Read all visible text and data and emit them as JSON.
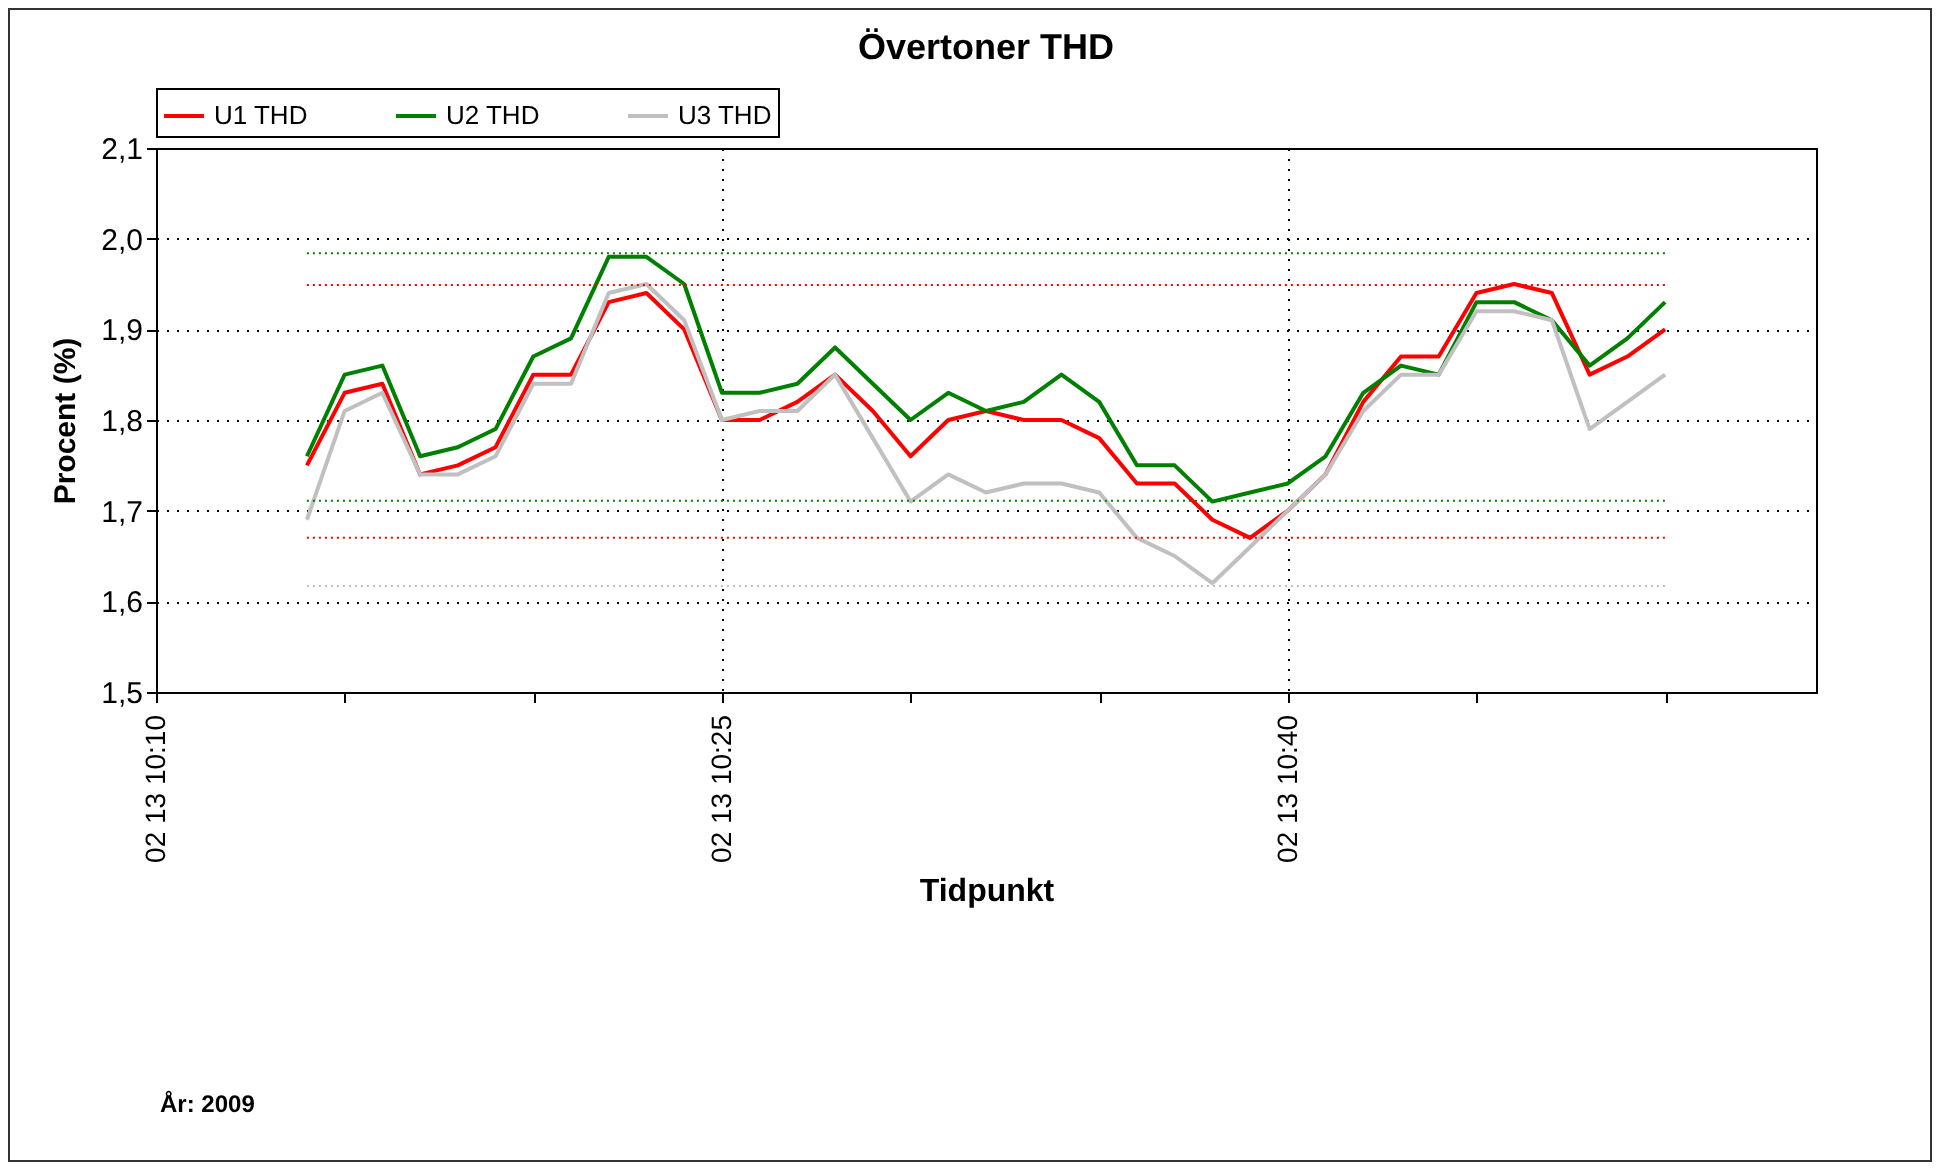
{
  "chart_data": {
    "type": "line",
    "title": "Övertoner THD",
    "xlabel": "Tidpunkt",
    "ylabel": "Procent (%)",
    "annotations": [
      "År: 2009"
    ],
    "x": [
      "2009-02-13T10:14",
      "2009-02-13T10:15",
      "2009-02-13T10:16",
      "2009-02-13T10:17",
      "2009-02-13T10:18",
      "2009-02-13T10:19",
      "2009-02-13T10:20",
      "2009-02-13T10:21",
      "2009-02-13T10:22",
      "2009-02-13T10:23",
      "2009-02-13T10:24",
      "2009-02-13T10:25",
      "2009-02-13T10:26",
      "2009-02-13T10:27",
      "2009-02-13T10:28",
      "2009-02-13T10:29",
      "2009-02-13T10:30",
      "2009-02-13T10:31",
      "2009-02-13T10:32",
      "2009-02-13T10:33",
      "2009-02-13T10:34",
      "2009-02-13T10:35",
      "2009-02-13T10:36",
      "2009-02-13T10:37",
      "2009-02-13T10:38",
      "2009-02-13T10:39",
      "2009-02-13T10:40",
      "2009-02-13T10:41",
      "2009-02-13T10:42",
      "2009-02-13T10:43",
      "2009-02-13T10:44",
      "2009-02-13T10:45",
      "2009-02-13T10:46",
      "2009-02-13T10:47",
      "2009-02-13T10:48",
      "2009-02-13T10:49",
      "2009-02-13T10:50"
    ],
    "series": [
      {
        "name": "U1 THD",
        "color": "#ff0000",
        "values": [
          1.75,
          1.83,
          1.84,
          1.74,
          1.75,
          1.77,
          1.85,
          1.85,
          1.93,
          1.94,
          1.9,
          1.8,
          1.8,
          1.82,
          1.85,
          1.81,
          1.76,
          1.8,
          1.81,
          1.8,
          1.8,
          1.78,
          1.73,
          1.73,
          1.69,
          1.67,
          1.7,
          1.74,
          1.82,
          1.87,
          1.87,
          1.94,
          1.95,
          1.94,
          1.85,
          1.87,
          1.9
        ]
      },
      {
        "name": "U2 THD",
        "color": "#008000",
        "values": [
          1.76,
          1.85,
          1.86,
          1.76,
          1.77,
          1.79,
          1.87,
          1.89,
          1.98,
          1.98,
          1.95,
          1.83,
          1.83,
          1.84,
          1.88,
          1.84,
          1.8,
          1.83,
          1.81,
          1.82,
          1.85,
          1.82,
          1.75,
          1.75,
          1.71,
          1.72,
          1.73,
          1.76,
          1.83,
          1.86,
          1.85,
          1.93,
          1.93,
          1.91,
          1.86,
          1.89,
          1.93
        ]
      },
      {
        "name": "U3 THD",
        "color": "#c0c0c0",
        "values": [
          1.69,
          1.81,
          1.83,
          1.74,
          1.74,
          1.76,
          1.84,
          1.84,
          1.94,
          1.95,
          1.91,
          1.8,
          1.81,
          1.81,
          1.85,
          1.78,
          1.71,
          1.74,
          1.72,
          1.73,
          1.73,
          1.72,
          1.67,
          1.65,
          1.62,
          1.66,
          1.7,
          1.74,
          1.81,
          1.85,
          1.85,
          1.92,
          1.92,
          1.91,
          1.79,
          1.82,
          1.85
        ]
      }
    ],
    "ref_lines": [
      {
        "axis": "y",
        "value": 1.984,
        "color": "#008000",
        "line_style": "dotted"
      },
      {
        "axis": "y",
        "value": 1.711,
        "color": "#008000",
        "line_style": "dotted"
      },
      {
        "axis": "y",
        "value": 1.949,
        "color": "#ff0000",
        "line_style": "dotted"
      },
      {
        "axis": "y",
        "value": 1.67,
        "color": "#ff0000",
        "line_style": "dotted"
      },
      {
        "axis": "y",
        "value": 1.617,
        "color": "#c0c0c0",
        "line_style": "dotted"
      }
    ],
    "xlim": [
      "2009-02-13T10:10",
      "2009-02-13T10:54"
    ],
    "xticks": [
      {
        "value": "2009-02-13T10:10",
        "label": "02 13 10:10"
      },
      {
        "value": "2009-02-13T10:15",
        "label": null
      },
      {
        "value": "2009-02-13T10:20",
        "label": null
      },
      {
        "value": "2009-02-13T10:25",
        "label": "02 13 10:25"
      },
      {
        "value": "2009-02-13T10:30",
        "label": null
      },
      {
        "value": "2009-02-13T10:35",
        "label": null
      },
      {
        "value": "2009-02-13T10:40",
        "label": "02 13 10:40"
      },
      {
        "value": "2009-02-13T10:45",
        "label": null
      },
      {
        "value": "2009-02-13T10:50",
        "label": null
      }
    ],
    "ylim": [
      1.5,
      2.1
    ],
    "yticks": [
      {
        "value": 1.5,
        "label": "1,5"
      },
      {
        "value": 1.6,
        "label": "1,6"
      },
      {
        "value": 1.7,
        "label": "1,7"
      },
      {
        "value": 1.8,
        "label": "1,8"
      },
      {
        "value": 1.9,
        "label": "1,9"
      },
      {
        "value": 2.0,
        "label": "2,0"
      },
      {
        "value": 2.1,
        "label": "2,1"
      }
    ],
    "grid": true,
    "legend": "top left",
    "line_style": "solid",
    "marker": "none"
  }
}
